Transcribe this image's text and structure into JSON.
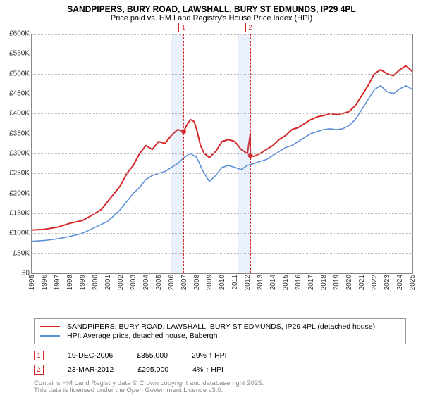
{
  "title_line1": "SANDPIPERS, BURY ROAD, LAWSHALL, BURY ST EDMUNDS, IP29 4PL",
  "title_line2": "Price paid vs. HM Land Registry's House Price Index (HPI)",
  "chart": {
    "type": "line",
    "background_color": "#ffffff",
    "grid_color": "#bbbbbb",
    "axis_color": "#888888",
    "ylim": [
      0,
      600000
    ],
    "ytick_step": 50000,
    "y_ticks": [
      "£0",
      "£50K",
      "£100K",
      "£150K",
      "£200K",
      "£250K",
      "£300K",
      "£350K",
      "£400K",
      "£450K",
      "£500K",
      "£550K",
      "£600K"
    ],
    "xlim": [
      1995,
      2025
    ],
    "x_ticks": [
      "1995",
      "1996",
      "1997",
      "1998",
      "1999",
      "2000",
      "2001",
      "2002",
      "2003",
      "2004",
      "2005",
      "2006",
      "2007",
      "2008",
      "2009",
      "2010",
      "2011",
      "2012",
      "2013",
      "2014",
      "2015",
      "2016",
      "2017",
      "2018",
      "2019",
      "2020",
      "2021",
      "2022",
      "2023",
      "2024",
      "2025"
    ],
    "highlight_bands": [
      {
        "x_start": 2006.0,
        "x_end": 2007.0
      },
      {
        "x_start": 2011.25,
        "x_end": 2012.25
      }
    ],
    "events": [
      {
        "label": "1",
        "x": 2006.97
      },
      {
        "label": "2",
        "x": 2012.23
      }
    ],
    "series": [
      {
        "name": "price_paid",
        "color": "#d62728",
        "line_width": 2,
        "points": [
          [
            1995,
            108000
          ],
          [
            1996,
            110000
          ],
          [
            1997,
            115000
          ],
          [
            1998,
            125000
          ],
          [
            1999,
            132000
          ],
          [
            2000,
            150000
          ],
          [
            2000.5,
            160000
          ],
          [
            2001,
            180000
          ],
          [
            2001.5,
            200000
          ],
          [
            2002,
            220000
          ],
          [
            2002.5,
            250000
          ],
          [
            2003,
            270000
          ],
          [
            2003.5,
            300000
          ],
          [
            2004,
            320000
          ],
          [
            2004.5,
            310000
          ],
          [
            2005,
            330000
          ],
          [
            2005.5,
            325000
          ],
          [
            2006,
            345000
          ],
          [
            2006.5,
            360000
          ],
          [
            2006.97,
            355000
          ],
          [
            2007.2,
            370000
          ],
          [
            2007.5,
            385000
          ],
          [
            2007.8,
            380000
          ],
          [
            2008,
            360000
          ],
          [
            2008.3,
            320000
          ],
          [
            2008.6,
            300000
          ],
          [
            2009,
            290000
          ],
          [
            2009.5,
            305000
          ],
          [
            2010,
            330000
          ],
          [
            2010.5,
            335000
          ],
          [
            2011,
            330000
          ],
          [
            2011.5,
            310000
          ],
          [
            2012,
            300000
          ],
          [
            2012.22,
            350000
          ],
          [
            2012.23,
            295000
          ],
          [
            2012.5,
            293000
          ],
          [
            2013,
            300000
          ],
          [
            2013.5,
            310000
          ],
          [
            2014,
            320000
          ],
          [
            2014.5,
            335000
          ],
          [
            2015,
            345000
          ],
          [
            2015.5,
            360000
          ],
          [
            2016,
            365000
          ],
          [
            2016.5,
            375000
          ],
          [
            2017,
            385000
          ],
          [
            2017.5,
            392000
          ],
          [
            2018,
            395000
          ],
          [
            2018.5,
            400000
          ],
          [
            2019,
            398000
          ],
          [
            2019.5,
            400000
          ],
          [
            2020,
            405000
          ],
          [
            2020.5,
            420000
          ],
          [
            2021,
            445000
          ],
          [
            2021.5,
            470000
          ],
          [
            2022,
            500000
          ],
          [
            2022.5,
            510000
          ],
          [
            2023,
            500000
          ],
          [
            2023.5,
            495000
          ],
          [
            2024,
            510000
          ],
          [
            2024.5,
            520000
          ],
          [
            2025,
            505000
          ]
        ]
      },
      {
        "name": "hpi",
        "color": "#5b8fd6",
        "line_width": 1.6,
        "points": [
          [
            1995,
            80000
          ],
          [
            1996,
            82000
          ],
          [
            1997,
            86000
          ],
          [
            1998,
            92000
          ],
          [
            1999,
            100000
          ],
          [
            2000,
            115000
          ],
          [
            2001,
            130000
          ],
          [
            2002,
            160000
          ],
          [
            2002.5,
            180000
          ],
          [
            2003,
            200000
          ],
          [
            2003.5,
            215000
          ],
          [
            2004,
            235000
          ],
          [
            2004.5,
            245000
          ],
          [
            2005,
            250000
          ],
          [
            2005.5,
            255000
          ],
          [
            2006,
            265000
          ],
          [
            2006.5,
            275000
          ],
          [
            2007,
            290000
          ],
          [
            2007.5,
            300000
          ],
          [
            2008,
            290000
          ],
          [
            2008.5,
            255000
          ],
          [
            2009,
            230000
          ],
          [
            2009.5,
            245000
          ],
          [
            2010,
            265000
          ],
          [
            2010.5,
            270000
          ],
          [
            2011,
            265000
          ],
          [
            2011.5,
            260000
          ],
          [
            2012,
            270000
          ],
          [
            2012.5,
            275000
          ],
          [
            2013,
            280000
          ],
          [
            2013.5,
            285000
          ],
          [
            2014,
            295000
          ],
          [
            2014.5,
            305000
          ],
          [
            2015,
            315000
          ],
          [
            2015.5,
            320000
          ],
          [
            2016,
            330000
          ],
          [
            2016.5,
            340000
          ],
          [
            2017,
            350000
          ],
          [
            2017.5,
            355000
          ],
          [
            2018,
            360000
          ],
          [
            2018.5,
            362000
          ],
          [
            2019,
            360000
          ],
          [
            2019.5,
            362000
          ],
          [
            2020,
            370000
          ],
          [
            2020.5,
            385000
          ],
          [
            2021,
            410000
          ],
          [
            2021.5,
            435000
          ],
          [
            2022,
            460000
          ],
          [
            2022.5,
            470000
          ],
          [
            2023,
            455000
          ],
          [
            2023.5,
            450000
          ],
          [
            2024,
            462000
          ],
          [
            2024.5,
            470000
          ],
          [
            2025,
            460000
          ]
        ]
      }
    ]
  },
  "legend": {
    "items": [
      {
        "color": "#d62728",
        "label": "SANDPIPERS, BURY ROAD, LAWSHALL, BURY ST EDMUNDS, IP29 4PL (detached house)"
      },
      {
        "color": "#5b8fd6",
        "label": "HPI: Average price, detached house, Babergh"
      }
    ]
  },
  "markers": [
    {
      "num": "1",
      "date": "19-DEC-2006",
      "price": "£355,000",
      "delta": "29% ↑ HPI"
    },
    {
      "num": "2",
      "date": "23-MAR-2012",
      "price": "£295,000",
      "delta": "4% ↑ HPI"
    }
  ],
  "footer_line1": "Contains HM Land Registry data © Crown copyright and database right 2025.",
  "footer_line2": "This data is licensed under the Open Government Licence v3.0."
}
